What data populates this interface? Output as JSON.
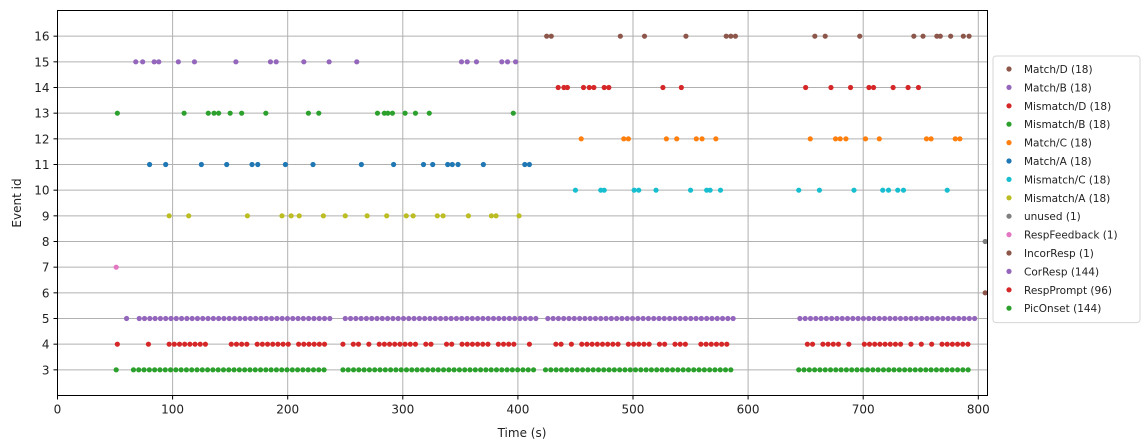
{
  "chart_data": {
    "type": "scatter",
    "title": "",
    "xlabel": "Time (s)",
    "ylabel": "Event id",
    "xlim": [
      0,
      808
    ],
    "ylim": [
      2,
      17
    ],
    "xticks": [
      0,
      100,
      200,
      300,
      400,
      500,
      600,
      700,
      800
    ],
    "yticks": [
      3,
      4,
      5,
      6,
      7,
      8,
      9,
      10,
      11,
      12,
      13,
      14,
      15,
      16
    ],
    "grid": true,
    "legend_position": "right outside",
    "series": [
      {
        "name": "Match/D (18)",
        "event_id": 16,
        "color": "#8c564b",
        "x": [
          425,
          429,
          489,
          510,
          546,
          581,
          585,
          589,
          658,
          667,
          697,
          744,
          752,
          764,
          767,
          776,
          787,
          792
        ]
      },
      {
        "name": "Match/B (18)",
        "event_id": 15,
        "color": "#9467bd",
        "x": [
          68,
          74,
          84,
          88,
          105,
          119,
          155,
          185,
          190,
          214,
          236,
          260,
          351,
          356,
          364,
          386,
          391,
          398
        ]
      },
      {
        "name": "Mismatch/D (18)",
        "event_id": 14,
        "color": "#d62728",
        "x": [
          435,
          440,
          443,
          457,
          462,
          466,
          475,
          479,
          526,
          542,
          650,
          672,
          689,
          705,
          709,
          726,
          739,
          748
        ]
      },
      {
        "name": "Mismatch/B (18)",
        "event_id": 13,
        "color": "#2ca02c",
        "x": [
          52,
          110,
          131,
          136,
          140,
          150,
          160,
          181,
          218,
          227,
          278,
          284,
          287,
          291,
          302,
          311,
          323,
          396
        ]
      },
      {
        "name": "Match/C (18)",
        "event_id": 12,
        "color": "#ff7f0e",
        "x": [
          455,
          492,
          496,
          529,
          538,
          555,
          560,
          572,
          654,
          676,
          680,
          685,
          702,
          714,
          755,
          759,
          780,
          784
        ]
      },
      {
        "name": "Match/A (18)",
        "event_id": 11,
        "color": "#1f77b4",
        "x": [
          80,
          94,
          125,
          147,
          169,
          174,
          198,
          222,
          264,
          292,
          318,
          326,
          339,
          343,
          348,
          370,
          406,
          410
        ]
      },
      {
        "name": "Mismatch/C (18)",
        "event_id": 10,
        "color": "#17becf",
        "x": [
          450,
          472,
          475,
          501,
          505,
          520,
          550,
          564,
          567,
          576,
          644,
          662,
          692,
          717,
          722,
          730,
          735,
          773
        ]
      },
      {
        "name": "Mismatch/A (18)",
        "event_id": 9,
        "color": "#bcbd22",
        "x": [
          97,
          114,
          165,
          195,
          203,
          210,
          231,
          250,
          269,
          286,
          303,
          309,
          330,
          335,
          357,
          377,
          381,
          401
        ]
      },
      {
        "name": "unused (1)",
        "event_id": 8,
        "color": "#7f7f7f",
        "x": [
          806
        ]
      },
      {
        "name": "RespFeedback (1)",
        "event_id": 7,
        "color": "#e377c2",
        "x": [
          51
        ]
      },
      {
        "name": "IncorResp (1)",
        "event_id": 6,
        "color": "#8c564b",
        "x": [
          806
        ]
      },
      {
        "name": "CorResp (144)",
        "event_id": 5,
        "color": "#9467bd",
        "count": 144
      },
      {
        "name": "RespPrompt (96)",
        "event_id": 4,
        "color": "#d62728",
        "count": 96
      },
      {
        "name": "PicOnset (144)",
        "event_id": 3,
        "color": "#2ca02c",
        "count": 144
      }
    ],
    "dense_rows": {
      "5": {
        "blocks": [
          [
            60,
            60
          ],
          [
            71,
            238
          ],
          [
            250,
            418
          ],
          [
            426,
            591
          ],
          [
            645,
            797
          ]
        ]
      },
      "4": {
        "blocks": [
          [
            52,
            52
          ],
          [
            79,
            236
          ],
          [
            248,
            416
          ],
          [
            424,
            590
          ],
          [
            647,
            794
          ]
        ],
        "gappy": true
      },
      "3": {
        "blocks": [
          [
            51,
            51
          ],
          [
            66,
            236
          ],
          [
            248,
            418
          ],
          [
            424,
            589
          ],
          [
            644,
            795
          ]
        ]
      }
    }
  },
  "axes": {
    "xlabel": "Time (s)",
    "ylabel": "Event id"
  }
}
